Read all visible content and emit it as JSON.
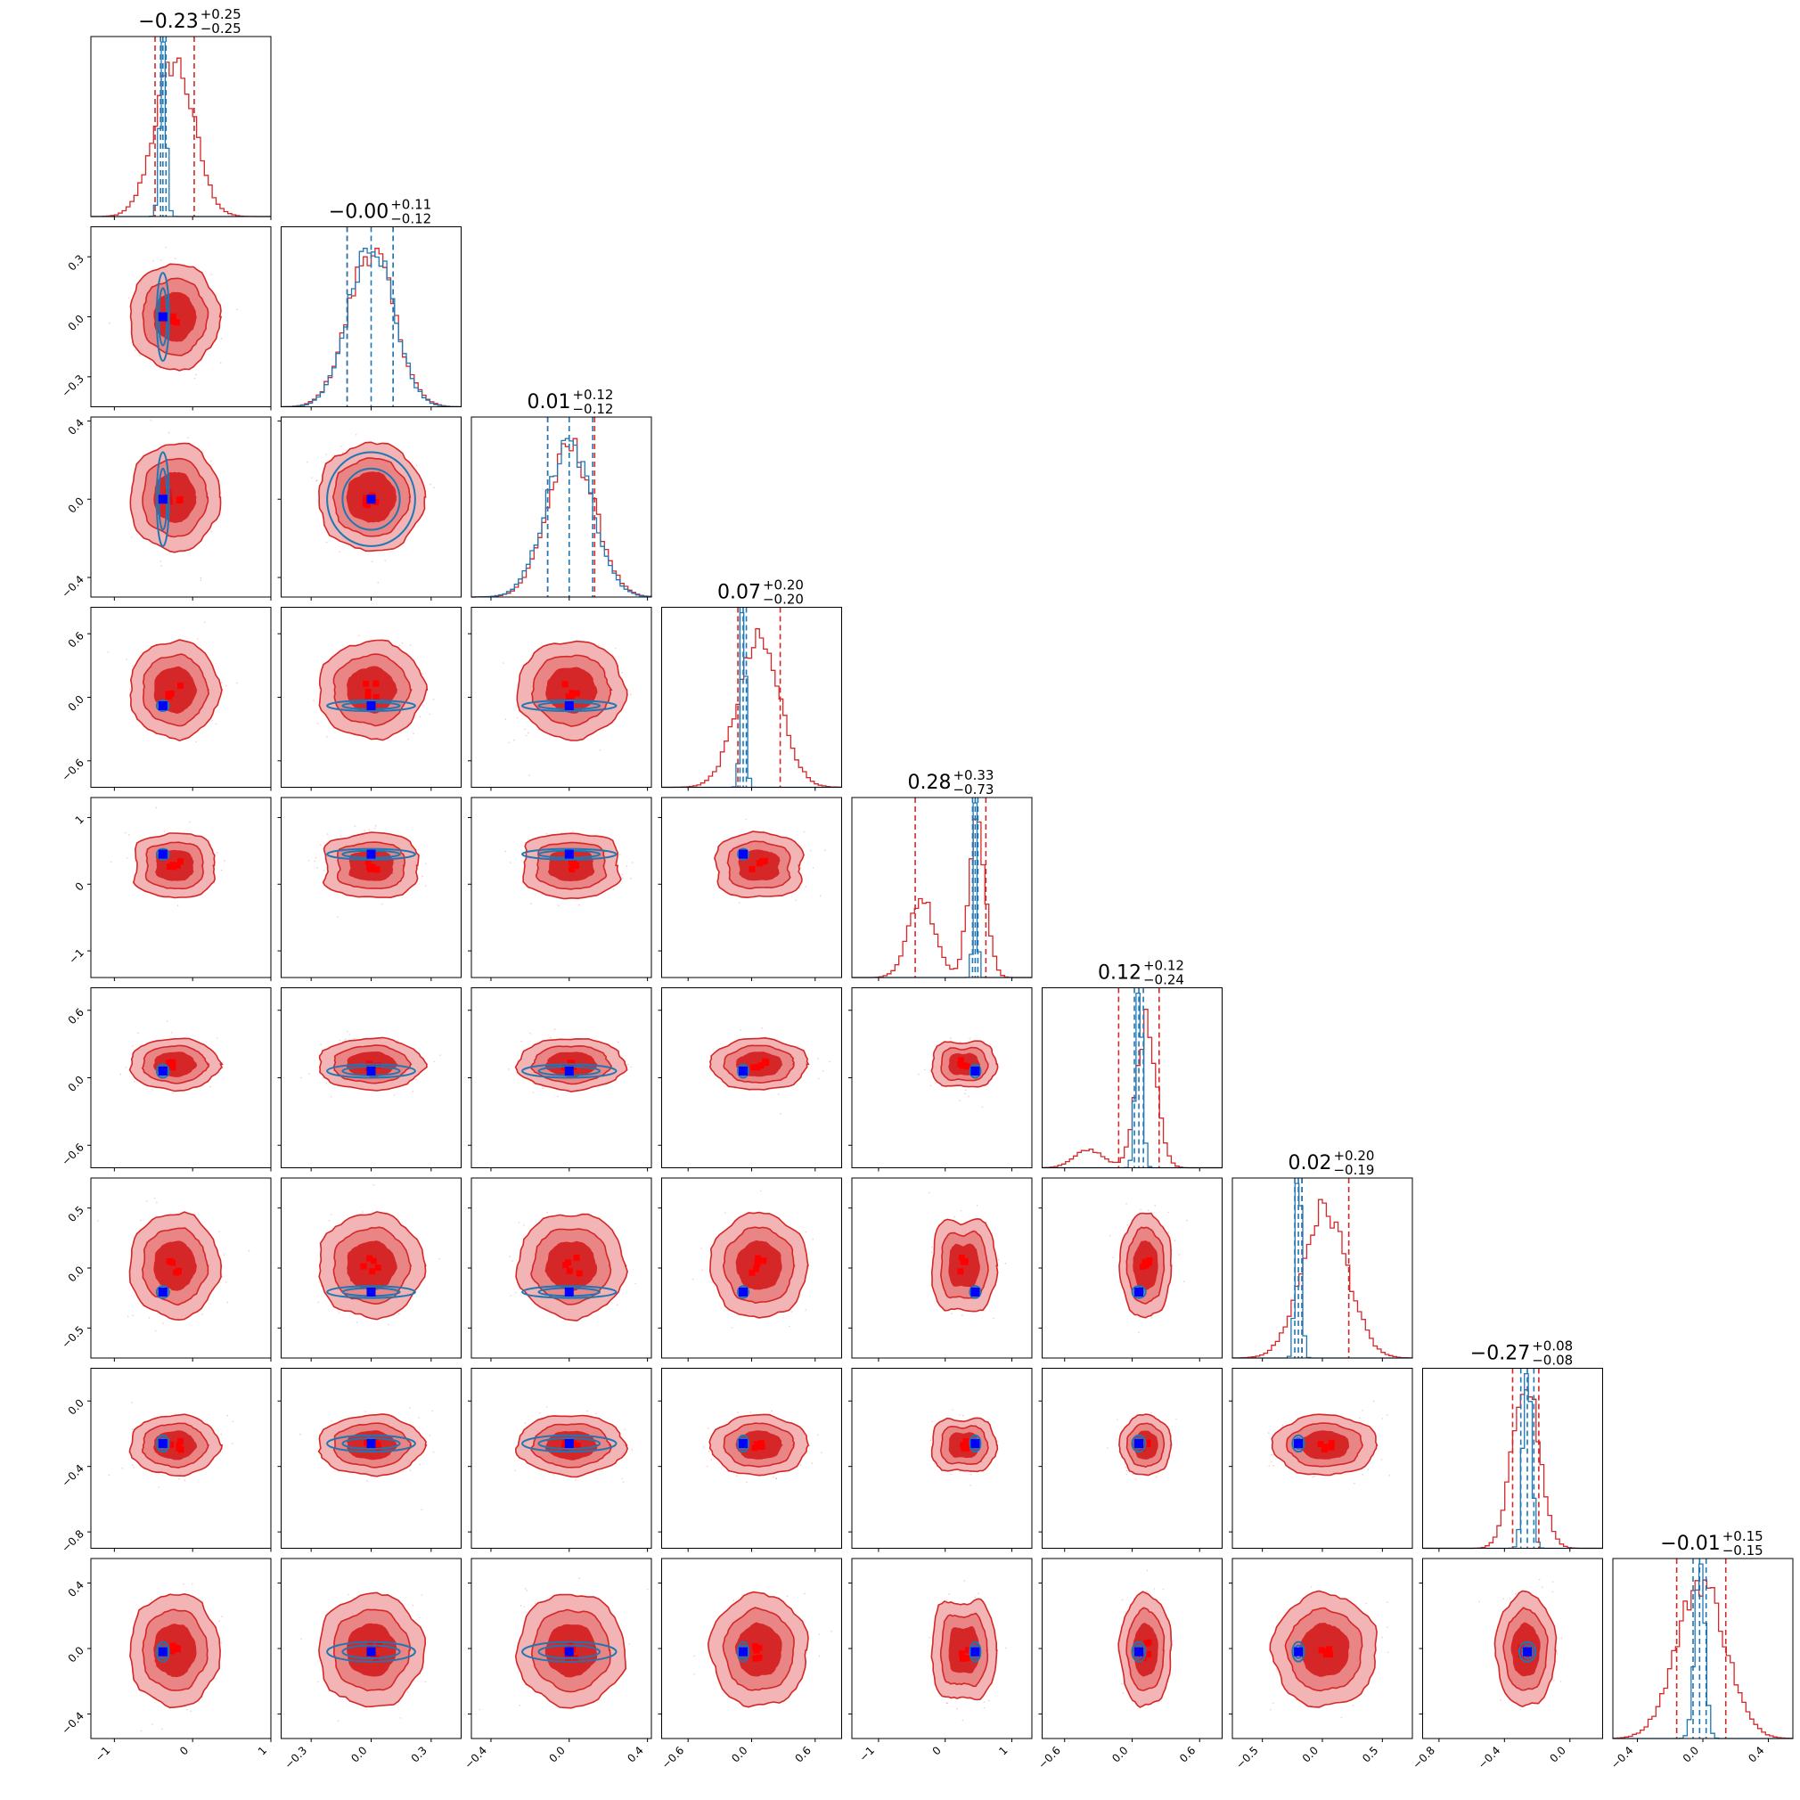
{
  "chart_data": {
    "type": "corner",
    "description_free": true,
    "grid": false,
    "colors": {
      "broad": "#d62728",
      "narrow": "#1f77b4",
      "broad_marker": "#ff0000",
      "narrow_marker": "#0000ff",
      "level_outer": "#f2b4b4",
      "level_mid": "#e98585",
      "level_inner": "#d62728"
    },
    "params": [
      {
        "title": {
          "value": "−0.23",
          "plus": "+0.25",
          "minus": "−0.25"
        },
        "range": [
          -1.3,
          1.0
        ],
        "ticks": [
          {
            "v": -1,
            "label": "−1"
          },
          {
            "v": 0,
            "label": "0"
          },
          {
            "v": 1,
            "label": "1"
          }
        ],
        "broad": {
          "sigma": 0.25,
          "quantiles": [
            -0.48,
            -0.23,
            0.02
          ],
          "modes": [
            {
              "mu": -0.23,
              "s": 0.25,
              "w": 1
            }
          ]
        },
        "narrow": {
          "mu": -0.38,
          "sigma": 0.04,
          "quantiles": [
            -0.41,
            -0.38,
            -0.34
          ]
        },
        "marker": -0.38
      },
      {
        "title": {
          "value": "−0.00",
          "plus": "+0.11",
          "minus": "−0.12"
        },
        "range": [
          -0.45,
          0.45
        ],
        "ticks": [
          {
            "v": -0.3,
            "label": "−0.3"
          },
          {
            "v": 0,
            "label": "0.0"
          },
          {
            "v": 0.3,
            "label": "0.3"
          }
        ],
        "broad": {
          "sigma": 0.115,
          "quantiles": [
            -0.12,
            0.0,
            0.11
          ],
          "modes": [
            {
              "mu": 0.0,
              "s": 0.115,
              "w": 1
            }
          ]
        },
        "narrow": {
          "mu": 0.0,
          "sigma": 0.11,
          "quantiles": [
            -0.12,
            0.0,
            0.11
          ]
        },
        "marker": 0.0
      },
      {
        "title": {
          "value": "0.01",
          "plus": "+0.12",
          "minus": "−0.12"
        },
        "range": [
          -0.5,
          0.42
        ],
        "ticks": [
          {
            "v": -0.4,
            "label": "−0.4"
          },
          {
            "v": 0,
            "label": "0.0"
          },
          {
            "v": 0.4,
            "label": "0.4"
          }
        ],
        "broad": {
          "sigma": 0.12,
          "quantiles": [
            -0.11,
            0.01,
            0.13
          ],
          "modes": [
            {
              "mu": 0.01,
              "s": 0.12,
              "w": 1
            }
          ]
        },
        "narrow": {
          "mu": 0.0,
          "sigma": 0.12,
          "quantiles": [
            -0.11,
            0.0,
            0.12
          ]
        },
        "marker": 0.0
      },
      {
        "title": {
          "value": "0.07",
          "plus": "+0.20",
          "minus": "−0.20"
        },
        "range": [
          -0.85,
          0.85
        ],
        "ticks": [
          {
            "v": -0.6,
            "label": "−0.6"
          },
          {
            "v": 0,
            "label": "0.0"
          },
          {
            "v": 0.6,
            "label": "0.6"
          }
        ],
        "broad": {
          "sigma": 0.2,
          "quantiles": [
            -0.13,
            0.07,
            0.27
          ],
          "modes": [
            {
              "mu": 0.07,
              "s": 0.2,
              "w": 1
            }
          ]
        },
        "narrow": {
          "mu": -0.08,
          "sigma": 0.025,
          "quantiles": [
            -0.11,
            -0.08,
            -0.05
          ]
        },
        "marker": -0.08
      },
      {
        "title": {
          "value": "0.28",
          "plus": "+0.33",
          "minus": "−0.73"
        },
        "range": [
          -1.4,
          1.3
        ],
        "ticks": [
          {
            "v": -1,
            "label": "−1"
          },
          {
            "v": 0,
            "label": "0"
          },
          {
            "v": 1,
            "label": "1"
          }
        ],
        "broad": {
          "sigma": 0.2,
          "quantiles": [
            -0.45,
            0.28,
            0.61
          ],
          "modes": [
            {
              "mu": -0.35,
              "s": 0.2,
              "w": 0.45
            },
            {
              "mu": 0.48,
              "s": 0.13,
              "w": 0.55
            }
          ]
        },
        "narrow": {
          "mu": 0.45,
          "sigma": 0.03,
          "quantiles": [
            0.41,
            0.45,
            0.49
          ]
        },
        "marker": 0.45
      },
      {
        "title": {
          "value": "0.12",
          "plus": "+0.12",
          "minus": "−0.24"
        },
        "range": [
          -0.8,
          0.8
        ],
        "ticks": [
          {
            "v": -0.6,
            "label": "−0.6"
          },
          {
            "v": 0,
            "label": "0.0"
          },
          {
            "v": 0.6,
            "label": "0.6"
          }
        ],
        "broad": {
          "sigma": 0.1,
          "quantiles": [
            -0.12,
            0.12,
            0.24
          ],
          "modes": [
            {
              "mu": -0.38,
              "s": 0.13,
              "w": 0.15
            },
            {
              "mu": 0.13,
              "s": 0.09,
              "w": 0.85
            }
          ]
        },
        "narrow": {
          "mu": 0.06,
          "sigma": 0.03,
          "quantiles": [
            0.02,
            0.06,
            0.1
          ]
        },
        "marker": 0.06
      },
      {
        "title": {
          "value": "0.02",
          "plus": "+0.20",
          "minus": "−0.19"
        },
        "range": [
          -0.75,
          0.75
        ],
        "ticks": [
          {
            "v": -0.5,
            "label": "−0.5"
          },
          {
            "v": 0,
            "label": "0.0"
          },
          {
            "v": 0.5,
            "label": "0.5"
          }
        ],
        "broad": {
          "sigma": 0.19,
          "quantiles": [
            -0.17,
            0.02,
            0.22
          ],
          "modes": [
            {
              "mu": 0.02,
              "s": 0.19,
              "w": 1
            }
          ]
        },
        "narrow": {
          "mu": -0.2,
          "sigma": 0.025,
          "quantiles": [
            -0.23,
            -0.2,
            -0.17
          ]
        },
        "marker": -0.2
      },
      {
        "title": {
          "value": "−0.27",
          "plus": "+0.08",
          "minus": "−0.08"
        },
        "range": [
          -0.9,
          0.2
        ],
        "ticks": [
          {
            "v": -0.8,
            "label": "−0.8"
          },
          {
            "v": -0.4,
            "label": "−0.4"
          },
          {
            "v": 0,
            "label": "0.0"
          }
        ],
        "broad": {
          "sigma": 0.08,
          "quantiles": [
            -0.35,
            -0.27,
            -0.19
          ],
          "modes": [
            {
              "mu": -0.27,
              "s": 0.08,
              "w": 1
            }
          ]
        },
        "narrow": {
          "mu": -0.26,
          "sigma": 0.025,
          "quantiles": [
            -0.3,
            -0.26,
            -0.22
          ]
        },
        "marker": -0.26
      },
      {
        "title": {
          "value": "−0.01",
          "plus": "+0.15",
          "minus": "−0.15"
        },
        "range": [
          -0.55,
          0.55
        ],
        "ticks": [
          {
            "v": -0.4,
            "label": "−0.4"
          },
          {
            "v": 0,
            "label": "0.0"
          },
          {
            "v": 0.4,
            "label": "0.4"
          }
        ],
        "broad": {
          "sigma": 0.15,
          "quantiles": [
            -0.16,
            -0.01,
            0.14
          ],
          "modes": [
            {
              "mu": -0.01,
              "s": 0.15,
              "w": 1
            }
          ]
        },
        "narrow": {
          "mu": -0.02,
          "sigma": 0.03,
          "quantiles": [
            -0.06,
            -0.02,
            0.02
          ]
        },
        "marker": -0.02
      }
    ]
  }
}
